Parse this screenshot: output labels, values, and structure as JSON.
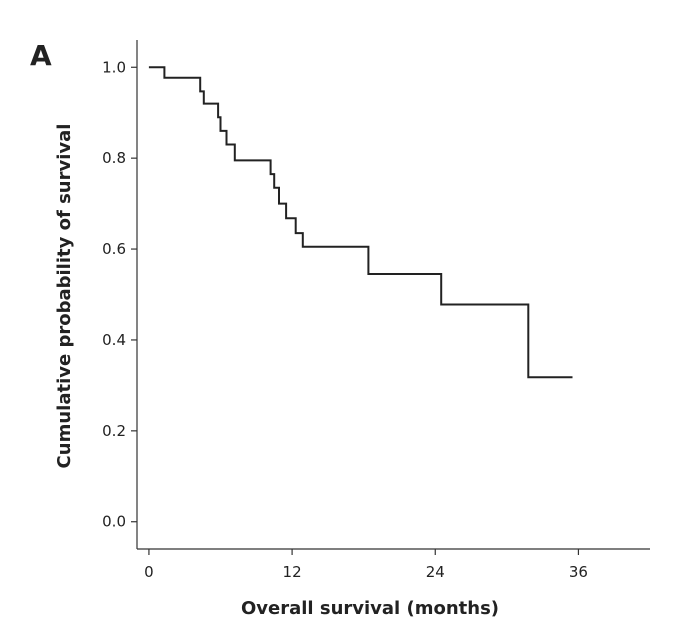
{
  "chart_data": {
    "type": "line",
    "panel_label": "A",
    "title": "",
    "xlabel": "Overall survival (months)",
    "ylabel": "Cumulative probability of survival",
    "xlim": [
      -1,
      42
    ],
    "ylim": [
      -0.06,
      1.06
    ],
    "xticks": [
      0,
      12,
      24,
      36
    ],
    "xtick_labels": [
      "0",
      "12",
      "24",
      "36"
    ],
    "yticks": [
      0.0,
      0.2,
      0.4,
      0.6,
      0.8,
      1.0
    ],
    "ytick_labels": [
      "0.0",
      "0.2",
      "0.4",
      "0.6",
      "0.8",
      "1.0"
    ],
    "grid": false,
    "legend": "none",
    "line_color": "#222222",
    "series": [
      {
        "step": true,
        "points": [
          [
            0,
            1.0
          ],
          [
            1.3,
            0.977
          ],
          [
            4.3,
            0.947
          ],
          [
            4.6,
            0.92
          ],
          [
            5.8,
            0.89
          ],
          [
            6.0,
            0.86
          ],
          [
            6.5,
            0.83
          ],
          [
            7.2,
            0.795
          ],
          [
            10.2,
            0.765
          ],
          [
            10.5,
            0.735
          ],
          [
            10.9,
            0.7
          ],
          [
            11.5,
            0.668
          ],
          [
            12.3,
            0.635
          ],
          [
            12.9,
            0.605
          ],
          [
            18.4,
            0.545
          ],
          [
            24.5,
            0.478
          ],
          [
            31.8,
            0.318
          ],
          [
            35.5,
            0.318
          ]
        ]
      }
    ]
  }
}
